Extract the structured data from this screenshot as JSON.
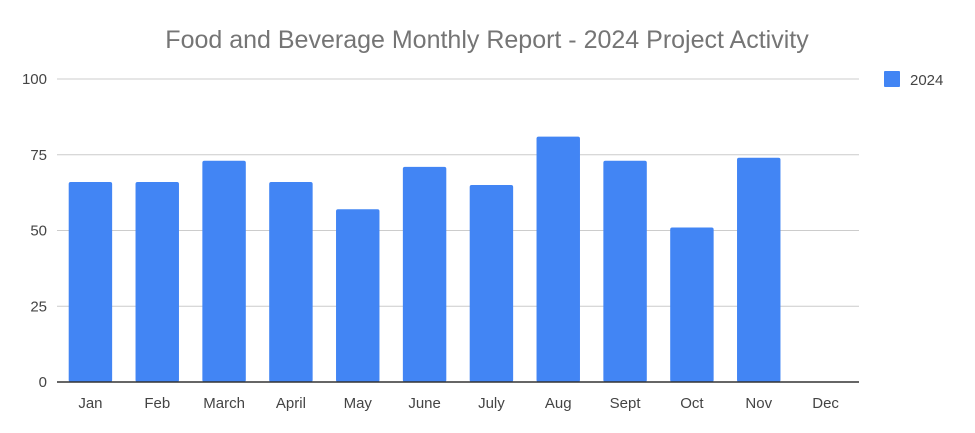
{
  "chart_data": {
    "type": "bar",
    "title": "Food and Beverage Monthly Report - 2024 Project Activity",
    "categories": [
      "Jan",
      "Feb",
      "March",
      "April",
      "May",
      "June",
      "July",
      "Aug",
      "Sept",
      "Oct",
      "Nov",
      "Dec"
    ],
    "series": [
      {
        "name": "2024",
        "values": [
          66,
          66,
          73,
          66,
          57,
          71,
          65,
          81,
          73,
          51,
          74,
          null
        ],
        "color": "#4285f4"
      }
    ],
    "ylim": [
      0,
      100
    ],
    "yticks": [
      0,
      25,
      50,
      75,
      100
    ],
    "grid": true,
    "legend_position": "top-right"
  }
}
